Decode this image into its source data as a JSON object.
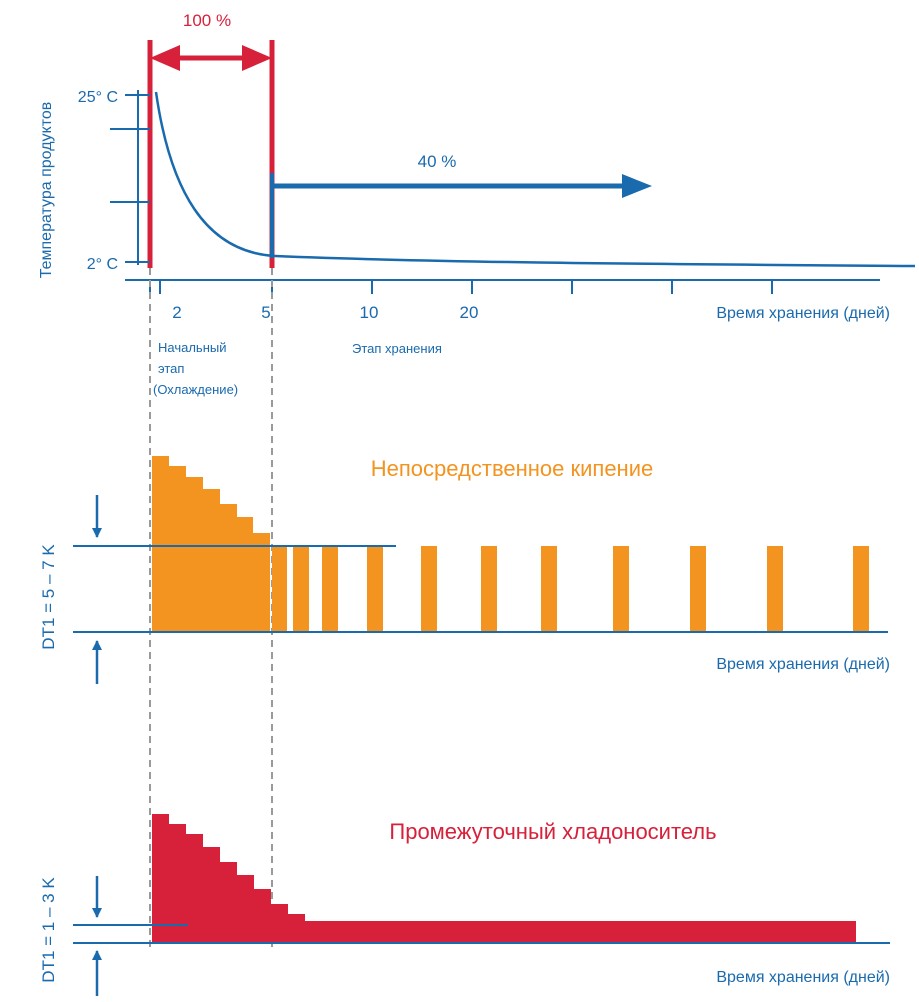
{
  "colors": {
    "blue": "#1a6aae",
    "red": "#d7203a",
    "orange": "#f39420",
    "dash": "#9a9a9a"
  },
  "top": {
    "pct_100": "100 %",
    "pct_40": "40 %",
    "y_axis_label": "Температура продуктов",
    "temp_high": "25° C",
    "temp_low": "2° C",
    "x_ticks": [
      "2",
      "5",
      "10",
      "20"
    ],
    "x_axis_label": "Время хранения (дней)",
    "initial_stage": [
      "Начальный",
      "этап",
      "(Охлаждение)"
    ],
    "storage_stage": "Этап хранения"
  },
  "direct": {
    "title": "Непосредственное кипение",
    "dt_label": "DT1 = 5 – 7 K",
    "x_axis_label": "Время хранения (дней)"
  },
  "brine": {
    "title": "Промежуточный хладоноситель",
    "dt_label": "DT1 = 1 – 3 K",
    "x_axis_label": "Время хранения (дней)"
  }
}
